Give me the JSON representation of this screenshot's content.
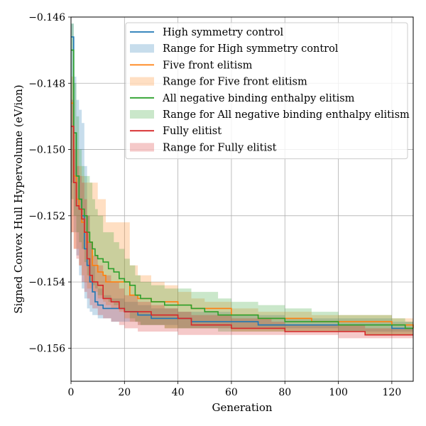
{
  "chart_data": {
    "type": "line",
    "xlabel": "Generation",
    "ylabel": "Signed Convex Hull Hypervolume (eV/ion)",
    "xlim": [
      0,
      128
    ],
    "ylim": [
      -0.157,
      -0.146
    ],
    "xticks": [
      0,
      20,
      40,
      60,
      80,
      100,
      120
    ],
    "yticks": [
      -0.146,
      -0.148,
      -0.15,
      -0.152,
      -0.154,
      -0.156
    ],
    "xtick_labels": [
      "0",
      "20",
      "40",
      "60",
      "80",
      "100",
      "120"
    ],
    "ytick_labels": [
      "−0.146",
      "−0.148",
      "−0.150",
      "−0.152",
      "−0.154",
      "−0.156"
    ],
    "grid": true,
    "legend_position": "top-right",
    "series": [
      {
        "name": "High symmetry control",
        "color": "#1f77b4",
        "x": [
          0,
          1,
          2,
          3,
          4,
          5,
          6,
          7,
          8,
          9,
          10,
          12,
          15,
          20,
          25,
          30,
          35,
          40,
          45,
          60,
          70,
          80,
          100,
          120,
          128
        ],
        "y": [
          -0.1466,
          -0.1495,
          -0.1508,
          -0.1515,
          -0.152,
          -0.153,
          -0.1535,
          -0.154,
          -0.1543,
          -0.1546,
          -0.1547,
          -0.1548,
          -0.1548,
          -0.1549,
          -0.155,
          -0.1551,
          -0.1551,
          -0.1551,
          -0.1552,
          -0.1552,
          -0.1553,
          -0.1553,
          -0.1553,
          -0.1554,
          -0.1554
        ],
        "range_name": "Range for High symmetry control",
        "range_low": [
          -0.1468,
          -0.151,
          -0.1525,
          -0.1532,
          -0.1538,
          -0.1542,
          -0.1545,
          -0.1548,
          -0.1549,
          -0.155,
          -0.155,
          -0.1551,
          -0.1551,
          -0.1552,
          -0.1552,
          -0.1553,
          -0.1553,
          -0.1553,
          -0.1554,
          -0.1554,
          -0.1554,
          -0.1554,
          -0.1554,
          -0.1555,
          -0.1555
        ],
        "range_high": [
          -0.1462,
          -0.1478,
          -0.1485,
          -0.1488,
          -0.1492,
          -0.1505,
          -0.152,
          -0.1528,
          -0.1535,
          -0.154,
          -0.1542,
          -0.1544,
          -0.1545,
          -0.1546,
          -0.1547,
          -0.1548,
          -0.1548,
          -0.1549,
          -0.1549,
          -0.155,
          -0.155,
          -0.1551,
          -0.1551,
          -0.1552,
          -0.1552
        ]
      },
      {
        "name": "Five front elitism",
        "color": "#ff7f0e",
        "x": [
          0,
          1,
          2,
          3,
          4,
          5,
          6,
          8,
          10,
          12,
          13,
          15,
          18,
          20,
          22,
          25,
          30,
          35,
          40,
          45,
          50,
          60,
          70,
          80,
          90,
          100,
          110,
          120,
          128
        ],
        "y": [
          -0.1486,
          -0.1508,
          -0.1515,
          -0.1518,
          -0.1522,
          -0.1525,
          -0.1528,
          -0.1535,
          -0.1537,
          -0.1538,
          -0.154,
          -0.154,
          -0.154,
          -0.154,
          -0.1544,
          -0.1545,
          -0.1546,
          -0.1546,
          -0.1547,
          -0.1548,
          -0.1548,
          -0.155,
          -0.1551,
          -0.1551,
          -0.1552,
          -0.1552,
          -0.1552,
          -0.1553,
          -0.1554
        ],
        "range_name": "Range for Five front elitism",
        "range_low": [
          -0.151,
          -0.1525,
          -0.153,
          -0.153,
          -0.1535,
          -0.1538,
          -0.154,
          -0.1542,
          -0.1543,
          -0.1545,
          -0.1546,
          -0.1547,
          -0.1548,
          -0.1549,
          -0.1551,
          -0.1552,
          -0.1553,
          -0.1553,
          -0.1554,
          -0.1554,
          -0.1554,
          -0.1554,
          -0.1555,
          -0.1555,
          -0.1555,
          -0.1555,
          -0.1555,
          -0.1556,
          -0.1556
        ],
        "range_high": [
          -0.1478,
          -0.1495,
          -0.15,
          -0.1505,
          -0.1508,
          -0.151,
          -0.151,
          -0.151,
          -0.1515,
          -0.1515,
          -0.1522,
          -0.1522,
          -0.1522,
          -0.1522,
          -0.1535,
          -0.1538,
          -0.154,
          -0.1541,
          -0.1543,
          -0.1545,
          -0.1546,
          -0.1548,
          -0.1549,
          -0.1549,
          -0.155,
          -0.155,
          -0.155,
          -0.1551,
          -0.1551
        ]
      },
      {
        "name": "All negative binding enthalpy elitism",
        "color": "#2ca02c",
        "x": [
          0,
          1,
          2,
          3,
          4,
          5,
          6,
          7,
          8,
          9,
          10,
          12,
          14,
          16,
          18,
          20,
          22,
          24,
          26,
          30,
          35,
          40,
          45,
          50,
          55,
          60,
          70,
          80,
          90,
          100,
          110,
          120,
          125,
          128
        ],
        "y": [
          -0.147,
          -0.1495,
          -0.1508,
          -0.1515,
          -0.1518,
          -0.152,
          -0.1525,
          -0.1528,
          -0.153,
          -0.1532,
          -0.1533,
          -0.1534,
          -0.1536,
          -0.1537,
          -0.1539,
          -0.154,
          -0.1541,
          -0.1544,
          -0.1545,
          -0.1546,
          -0.1547,
          -0.1547,
          -0.1548,
          -0.1549,
          -0.155,
          -0.155,
          -0.1551,
          -0.1552,
          -0.1552,
          -0.1553,
          -0.1553,
          -0.1553,
          -0.1554,
          -0.1554
        ],
        "range_name": "Range for All negative binding enthalpy elitism",
        "range_low": [
          -0.149,
          -0.1515,
          -0.152,
          -0.1525,
          -0.1528,
          -0.153,
          -0.1534,
          -0.1538,
          -0.154,
          -0.1541,
          -0.1542,
          -0.1544,
          -0.1545,
          -0.1546,
          -0.1547,
          -0.1548,
          -0.1549,
          -0.1551,
          -0.1552,
          -0.1553,
          -0.1553,
          -0.1554,
          -0.1554,
          -0.1554,
          -0.1554,
          -0.1555,
          -0.1555,
          -0.1555,
          -0.1555,
          -0.1555,
          -0.1555,
          -0.1556,
          -0.1556,
          -0.1556
        ],
        "range_high": [
          -0.1462,
          -0.148,
          -0.149,
          -0.15,
          -0.1505,
          -0.1508,
          -0.1508,
          -0.151,
          -0.1515,
          -0.1518,
          -0.152,
          -0.1525,
          -0.1525,
          -0.1528,
          -0.153,
          -0.1533,
          -0.1535,
          -0.1538,
          -0.154,
          -0.1541,
          -0.1542,
          -0.1542,
          -0.1543,
          -0.1543,
          -0.1545,
          -0.1546,
          -0.1547,
          -0.1548,
          -0.1549,
          -0.155,
          -0.155,
          -0.1551,
          -0.1552,
          -0.1552
        ]
      },
      {
        "name": "Fully elitist",
        "color": "#d62728",
        "x": [
          0,
          1,
          2,
          3,
          4,
          5,
          6,
          7,
          8,
          10,
          12,
          15,
          18,
          20,
          25,
          30,
          35,
          40,
          45,
          60,
          75,
          80,
          100,
          110,
          128
        ],
        "y": [
          -0.1493,
          -0.151,
          -0.1517,
          -0.1518,
          -0.1521,
          -0.1525,
          -0.1533,
          -0.1538,
          -0.154,
          -0.1541,
          -0.1545,
          -0.1546,
          -0.1548,
          -0.1549,
          -0.1549,
          -0.155,
          -0.155,
          -0.1551,
          -0.1553,
          -0.1554,
          -0.1554,
          -0.1555,
          -0.1555,
          -0.1556,
          -0.1556
        ],
        "range_name": "Range for Fully elitist",
        "range_low": [
          -0.1505,
          -0.1525,
          -0.153,
          -0.1533,
          -0.1535,
          -0.154,
          -0.1543,
          -0.1545,
          -0.1547,
          -0.1548,
          -0.155,
          -0.1551,
          -0.1552,
          -0.1553,
          -0.1554,
          -0.1555,
          -0.1555,
          -0.1555,
          -0.1556,
          -0.1556,
          -0.1556,
          -0.1556,
          -0.1556,
          -0.1557,
          -0.1557
        ],
        "range_high": [
          -0.1485,
          -0.15,
          -0.1505,
          -0.1508,
          -0.151,
          -0.1515,
          -0.152,
          -0.1528,
          -0.1532,
          -0.1535,
          -0.1538,
          -0.154,
          -0.1542,
          -0.1544,
          -0.1546,
          -0.1547,
          -0.1548,
          -0.1549,
          -0.155,
          -0.1551,
          -0.1552,
          -0.1553,
          -0.1553,
          -0.1554,
          -0.1554
        ]
      }
    ]
  }
}
